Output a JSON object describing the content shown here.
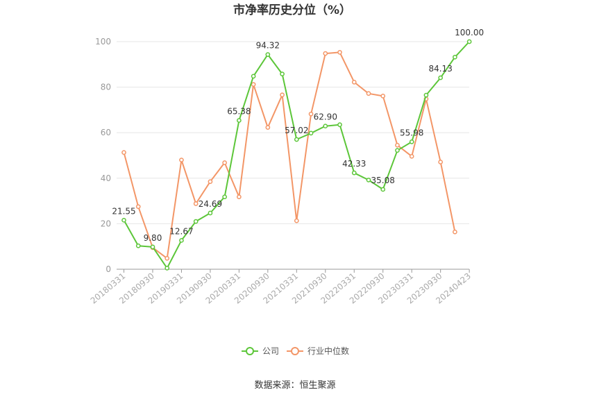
{
  "chart_data": {
    "type": "line",
    "title": "市净率历史分位（%）",
    "ylim": [
      0,
      100
    ],
    "yticks": [
      0,
      20,
      40,
      60,
      80,
      100
    ],
    "grid": true,
    "legend_position": "bottom-center",
    "x_tick_labels": [
      "20180331",
      "20180930",
      "20190331",
      "20190930",
      "20200331",
      "20200930",
      "20210331",
      "20210930",
      "20220331",
      "20220930",
      "20230331",
      "20230930",
      "20240423"
    ],
    "x": [
      "20180331",
      "20180630",
      "20180930",
      "20181231",
      "20190331",
      "20190630",
      "20190930",
      "20191231",
      "20200331",
      "20200630",
      "20200930",
      "20201231",
      "20210331",
      "20210630",
      "20210930",
      "20211231",
      "20220331",
      "20220630",
      "20220930",
      "20221231",
      "20230331",
      "20230630",
      "20230930",
      "20231231",
      "20240423"
    ],
    "series": [
      {
        "name": "公司",
        "color": "#5cc639",
        "values": [
          21.55,
          10.3,
          9.8,
          0.5,
          12.67,
          21.0,
          24.69,
          31.8,
          65.38,
          84.8,
          94.32,
          85.8,
          57.02,
          59.8,
          62.9,
          63.5,
          42.33,
          39.2,
          35.08,
          52.2,
          55.98,
          76.5,
          84.13,
          93.2,
          100.0
        ],
        "data_labels": [
          {
            "index": 0,
            "text": "21.55"
          },
          {
            "index": 2,
            "text": "9.80"
          },
          {
            "index": 4,
            "text": "12.67"
          },
          {
            "index": 6,
            "text": "24.69"
          },
          {
            "index": 8,
            "text": "65.38"
          },
          {
            "index": 10,
            "text": "94.32"
          },
          {
            "index": 12,
            "text": "57.02"
          },
          {
            "index": 14,
            "text": "62.90"
          },
          {
            "index": 16,
            "text": "42.33"
          },
          {
            "index": 18,
            "text": "35.08"
          },
          {
            "index": 20,
            "text": "55.98"
          },
          {
            "index": 22,
            "text": "84.13"
          },
          {
            "index": 24,
            "text": "100.00"
          }
        ]
      },
      {
        "name": "行业中位数",
        "color": "#f39667",
        "values": [
          51.3,
          27.5,
          9.5,
          4.8,
          48.0,
          28.8,
          38.5,
          46.8,
          31.8,
          81.2,
          62.3,
          76.6,
          21.3,
          68.2,
          94.8,
          95.3,
          82.2,
          77.2,
          76.1,
          54.5,
          49.6,
          74.8,
          47.1,
          16.4,
          null
        ]
      }
    ]
  },
  "source": "数据来源：恒生聚源"
}
